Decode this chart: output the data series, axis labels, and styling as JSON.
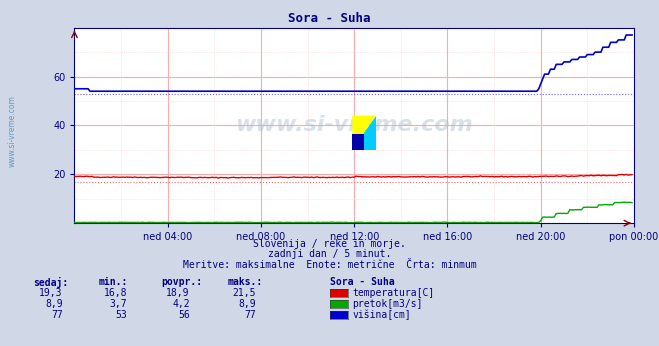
{
  "title": "Sora - Suha",
  "title_color": "#000080",
  "bg_color": "#d0d8e8",
  "plot_bg_color": "#ffffff",
  "grid_color_major": "#ffaaaa",
  "grid_color_minor": "#ffcccc",
  "xlabel_ticks": [
    "ned 04:00",
    "ned 08:00",
    "ned 12:00",
    "ned 16:00",
    "ned 20:00",
    "pon 00:00"
  ],
  "yticks": [
    20,
    40,
    60
  ],
  "ylim": [
    0,
    80
  ],
  "xlim": [
    0,
    288
  ],
  "tick_positions": [
    48,
    96,
    144,
    192,
    240,
    288
  ],
  "subtitle1": "Slovenija / reke in morje.",
  "subtitle2": "zadnji dan / 5 minut.",
  "subtitle3": "Meritve: maksimalne  Enote: metrične  Črta: minmum",
  "watermark": "www.si-vreme.com",
  "legend_title": "Sora - Suha",
  "legend_items": [
    "temperatura[C]",
    "pretok[m3/s]",
    "višina[cm]"
  ],
  "legend_colors": [
    "#dd0000",
    "#00aa00",
    "#0000cc"
  ],
  "table_headers": [
    "sedaj:",
    "min.:",
    "povpr.:",
    "maks.:"
  ],
  "table_data": [
    [
      "19,3",
      "16,8",
      "18,9",
      "21,5"
    ],
    [
      "8,9",
      "3,7",
      "4,2",
      "8,9"
    ],
    [
      "77",
      "53",
      "56",
      "77"
    ]
  ],
  "temp_min_line": 16.8,
  "height_min_line": 53,
  "temp_color": "#dd0000",
  "flow_color": "#00aa00",
  "height_color": "#0000cc",
  "min_line_temp_color": "#ff6666",
  "min_line_height_color": "#6666ff",
  "ylabel_color": "#000080",
  "tick_color": "#000080",
  "axis_color": "#000080",
  "left_label_color": "#6699bb",
  "logo_yellow": "#ffff00",
  "logo_cyan": "#00ccff",
  "logo_blue": "#0000aa",
  "logo_dark": "#003388"
}
